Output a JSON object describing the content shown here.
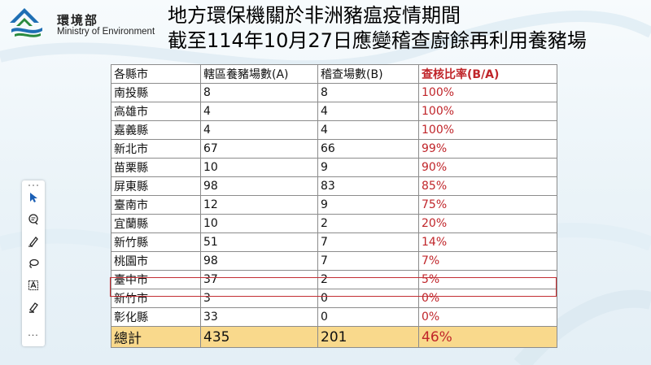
{
  "logo": {
    "name_zh": "環境部",
    "name_en": "Ministry of Environment"
  },
  "title": {
    "line1": "地方環保機關於非洲豬瘟疫情期間",
    "line2": "截至114年10月27日應變稽查廚餘再利用養豬場"
  },
  "table": {
    "headers": [
      "各縣市",
      "轄區養豬場數(A)",
      "稽查場數(B)",
      "查核比率(B/A)"
    ],
    "rows": [
      [
        "南投縣",
        "8",
        "8",
        "100%"
      ],
      [
        "高雄市",
        "4",
        "4",
        "100%"
      ],
      [
        "嘉義縣",
        "4",
        "4",
        "100%"
      ],
      [
        "新北市",
        "67",
        "66",
        "99%"
      ],
      [
        "苗栗縣",
        "10",
        "9",
        "90%"
      ],
      [
        "屏東縣",
        "98",
        "83",
        "85%"
      ],
      [
        "臺南市",
        "12",
        "9",
        "75%"
      ],
      [
        "宜蘭縣",
        "10",
        "2",
        "20%"
      ],
      [
        "新竹縣",
        "51",
        "7",
        "14%"
      ],
      [
        "桃園市",
        "98",
        "7",
        "7%"
      ],
      [
        "臺中市",
        "37",
        "2",
        "5%"
      ],
      [
        "新竹市",
        "3",
        "0",
        "0%"
      ],
      [
        "彰化縣",
        "33",
        "0",
        "0%"
      ]
    ],
    "total": [
      "總計",
      "435",
      "201",
      "46%"
    ],
    "highlighted_row": "臺中市"
  },
  "toolbar": {
    "tools": [
      "select-arrow-icon",
      "comment-icon",
      "pen-icon",
      "lasso-icon",
      "text-box-icon",
      "highlighter-icon"
    ],
    "more_label": "..."
  },
  "colors": {
    "ratio_red": "#c0252a",
    "total_bg": "#f9d98c",
    "highlight_border": "#c32d33"
  }
}
